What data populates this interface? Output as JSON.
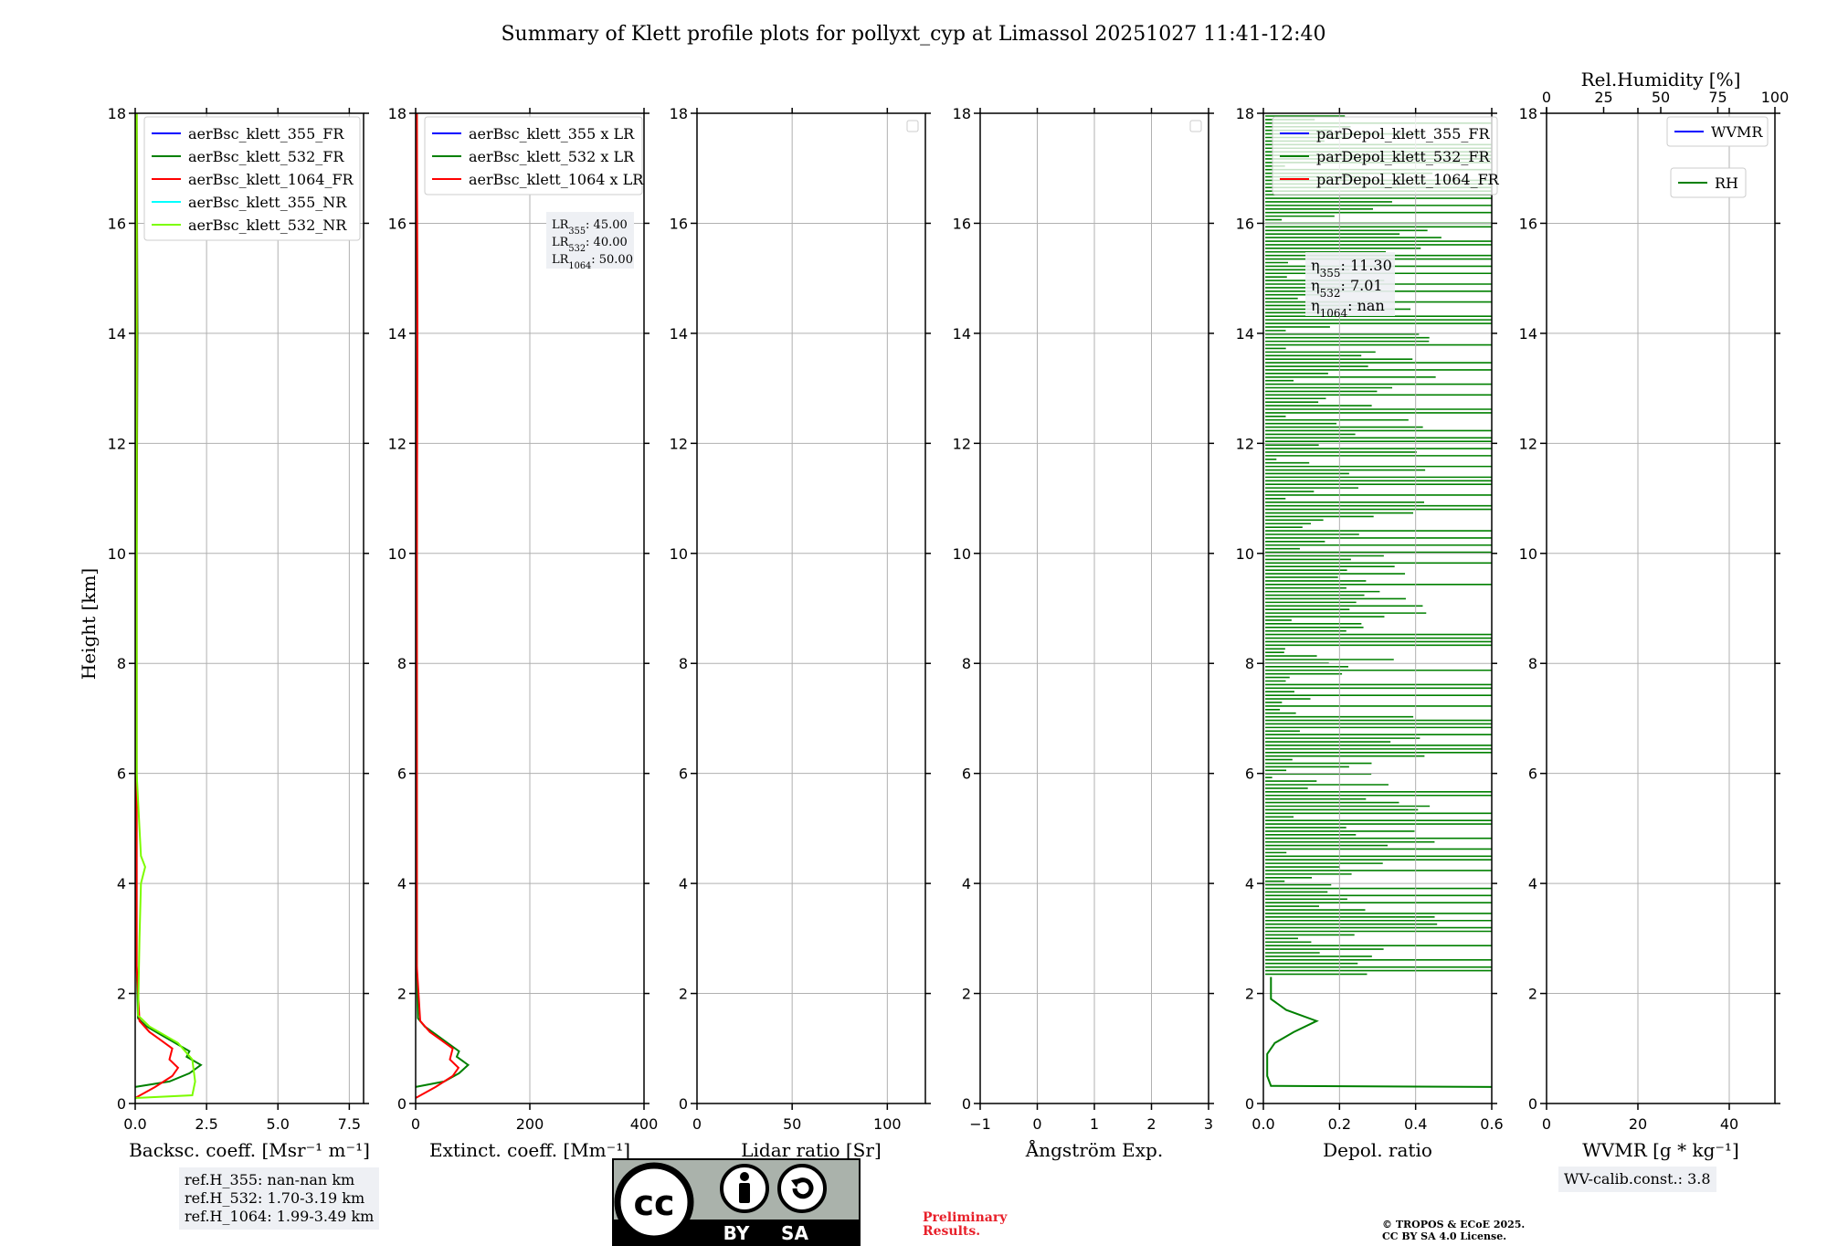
{
  "chart_data": {
    "type": "line",
    "title": "Summary of Klett profile plots for pollyxt_cyp at Limassol 20251027 11:41-12:40",
    "ylabel": "Height [km]",
    "ylim": [
      0,
      18
    ],
    "y_ticks": [
      0,
      2,
      4,
      6,
      8,
      10,
      12,
      14,
      16,
      18
    ],
    "panels": [
      {
        "id": "backscatter",
        "xlabel": "Backsc. coeff. [Msr⁻¹ m⁻¹]",
        "xlim": [
          0,
          8
        ],
        "x_ticks": [
          0,
          2.5,
          5,
          7.5
        ],
        "x_tick_labels": [
          "0.0",
          "2.5",
          "5.0",
          "7.5"
        ],
        "legend": [
          {
            "label": "aerBsc_klett_355_FR",
            "color": "#0000ff"
          },
          {
            "label": "aerBsc_klett_532_FR",
            "color": "#008000"
          },
          {
            "label": "aerBsc_klett_1064_FR",
            "color": "#ff0000"
          },
          {
            "label": "aerBsc_klett_355_NR",
            "color": "#00ffff"
          },
          {
            "label": "aerBsc_klett_532_NR",
            "color": "#7cfc00"
          }
        ],
        "series": [
          {
            "name": "aerBsc_klett_532_FR",
            "color": "#008000",
            "points": [
              [
                0.0,
                0.3
              ],
              [
                1.2,
                0.4
              ],
              [
                1.9,
                0.55
              ],
              [
                2.3,
                0.7
              ],
              [
                1.8,
                0.85
              ],
              [
                1.9,
                0.95
              ],
              [
                1.4,
                1.1
              ],
              [
                0.9,
                1.25
              ],
              [
                0.4,
                1.4
              ],
              [
                0.1,
                1.55
              ],
              [
                0.05,
                2.5
              ],
              [
                0.05,
                6
              ],
              [
                0.05,
                10
              ],
              [
                0.08,
                14
              ],
              [
                0.05,
                18
              ]
            ]
          },
          {
            "name": "aerBsc_klett_1064_FR",
            "color": "#ff0000",
            "points": [
              [
                0.0,
                0.1
              ],
              [
                0.7,
                0.3
              ],
              [
                1.3,
                0.5
              ],
              [
                1.5,
                0.65
              ],
              [
                1.2,
                0.8
              ],
              [
                1.3,
                1.0
              ],
              [
                0.9,
                1.15
              ],
              [
                0.5,
                1.3
              ],
              [
                0.15,
                1.5
              ],
              [
                0.05,
                2.5
              ],
              [
                0.05,
                6
              ],
              [
                0.05,
                10
              ],
              [
                0.06,
                14
              ],
              [
                0.05,
                18
              ]
            ]
          },
          {
            "name": "aerBsc_klett_532_NR",
            "color": "#7cfc00",
            "points": [
              [
                0.0,
                0.1
              ],
              [
                2.0,
                0.15
              ],
              [
                2.1,
                0.4
              ],
              [
                2.0,
                0.8
              ],
              [
                1.5,
                1.1
              ],
              [
                0.5,
                1.4
              ],
              [
                0.1,
                1.6
              ],
              [
                0.15,
                3
              ],
              [
                0.2,
                4.0
              ],
              [
                0.35,
                4.3
              ],
              [
                0.2,
                4.5
              ],
              [
                0.15,
                5
              ],
              [
                0.05,
                6
              ],
              [
                0.05,
                10
              ],
              [
                0.05,
                18
              ]
            ]
          }
        ]
      },
      {
        "id": "extinction",
        "xlabel": "Extinct. coeff. [Mm⁻¹]",
        "xlim": [
          0,
          400
        ],
        "x_ticks": [
          0,
          200,
          400
        ],
        "x_tick_labels": [
          "0",
          "200",
          "400"
        ],
        "legend": [
          {
            "label": "aerBsc_klett_355 x LR",
            "color": "#0000ff"
          },
          {
            "label": "aerBsc_klett_532 x LR",
            "color": "#008000"
          },
          {
            "label": "aerBsc_klett_1064 x LR",
            "color": "#ff0000"
          }
        ],
        "lr_box": [
          "LR355: 45.00",
          "LR532: 40.00",
          "LR1064: 50.00"
        ],
        "series": [
          {
            "name": "aerBsc_klett_532 x LR",
            "color": "#008000",
            "points": [
              [
                0,
                0.3
              ],
              [
                50,
                0.4
              ],
              [
                76,
                0.55
              ],
              [
                92,
                0.7
              ],
              [
                72,
                0.85
              ],
              [
                76,
                0.95
              ],
              [
                56,
                1.1
              ],
              [
                36,
                1.25
              ],
              [
                16,
                1.4
              ],
              [
                4,
                1.55
              ],
              [
                2,
                2.5
              ],
              [
                2,
                6
              ],
              [
                2,
                10
              ],
              [
                3,
                14
              ],
              [
                2,
                18
              ]
            ]
          },
          {
            "name": "aerBsc_klett_1064 x LR",
            "color": "#ff0000",
            "points": [
              [
                0,
                0.1
              ],
              [
                35,
                0.3
              ],
              [
                65,
                0.5
              ],
              [
                75,
                0.65
              ],
              [
                60,
                0.8
              ],
              [
                65,
                1.0
              ],
              [
                45,
                1.15
              ],
              [
                25,
                1.3
              ],
              [
                8,
                1.5
              ],
              [
                2,
                2.5
              ],
              [
                2,
                6
              ],
              [
                2,
                10
              ],
              [
                3,
                14
              ],
              [
                2,
                18
              ]
            ]
          }
        ]
      },
      {
        "id": "lidar-ratio",
        "xlabel": "Lidar ratio [Sr]",
        "xlim": [
          0,
          120
        ],
        "x_ticks": [
          0,
          50,
          100
        ],
        "x_tick_labels": [
          "0",
          "50",
          "100"
        ],
        "legend": [],
        "series": []
      },
      {
        "id": "angstrom",
        "xlabel": "Ångström Exp.",
        "xlim": [
          -1,
          3
        ],
        "x_ticks": [
          -1,
          0,
          1,
          2,
          3
        ],
        "x_tick_labels": [
          "−1",
          "0",
          "1",
          "2",
          "3"
        ],
        "legend": [],
        "series": []
      },
      {
        "id": "depol",
        "xlabel": "Depol. ratio",
        "xlim": [
          0,
          0.6
        ],
        "x_ticks": [
          0,
          0.2,
          0.4,
          0.6
        ],
        "x_tick_labels": [
          "0.0",
          "0.2",
          "0.4",
          "0.6"
        ],
        "legend": [
          {
            "label": "parDepol_klett_355_FR",
            "color": "#0000ff"
          },
          {
            "label": "parDepol_klett_532_FR",
            "color": "#008000"
          },
          {
            "label": "parDepol_klett_1064_FR",
            "color": "#ff0000"
          }
        ],
        "eta_box": [
          "η355: 11.30",
          "η532: 7.01",
          "η1064: nan"
        ],
        "series": [
          {
            "name": "parDepol_klett_532_FR",
            "color": "#008000",
            "points": [
              [
                0.6,
                0.3
              ],
              [
                0.02,
                0.32
              ],
              [
                0.01,
                0.5
              ],
              [
                0.01,
                0.9
              ],
              [
                0.03,
                1.1
              ],
              [
                0.08,
                1.3
              ],
              [
                0.14,
                1.5
              ],
              [
                0.06,
                1.7
              ],
              [
                0.02,
                1.9
              ],
              [
                0.02,
                2.3
              ]
            ]
          }
        ]
      },
      {
        "id": "wvmr",
        "xlabel": "WVMR [g * kg⁻¹]",
        "xlim": [
          0,
          50
        ],
        "x_ticks": [
          0,
          20,
          40
        ],
        "x_tick_labels": [
          "0",
          "20",
          "40"
        ],
        "top_xlabel": "Rel.Humidity [%]",
        "top_xlim": [
          0,
          100
        ],
        "top_x_ticks": [
          0,
          25,
          50,
          75,
          100
        ],
        "top_x_tick_labels": [
          "0",
          "25",
          "50",
          "75",
          "100"
        ],
        "legend": [
          {
            "label": "WVMR",
            "color": "#0000ff"
          },
          {
            "label": "RH",
            "color": "#008000"
          }
        ],
        "series": []
      }
    ]
  },
  "footer": {
    "ref_heights": [
      "ref.H_355: nan-nan km",
      "ref.H_532: 1.70-3.19 km",
      "ref.H_1064: 1.99-3.49 km"
    ],
    "wv_calib": "WV-calib.const.: 3.8",
    "preliminary": [
      "Preliminary",
      "Results."
    ],
    "copyright": [
      "© TROPOS & ECoE 2025.",
      "CC BY SA 4.0 License."
    ],
    "license_badge": [
      "BY",
      "SA"
    ]
  }
}
